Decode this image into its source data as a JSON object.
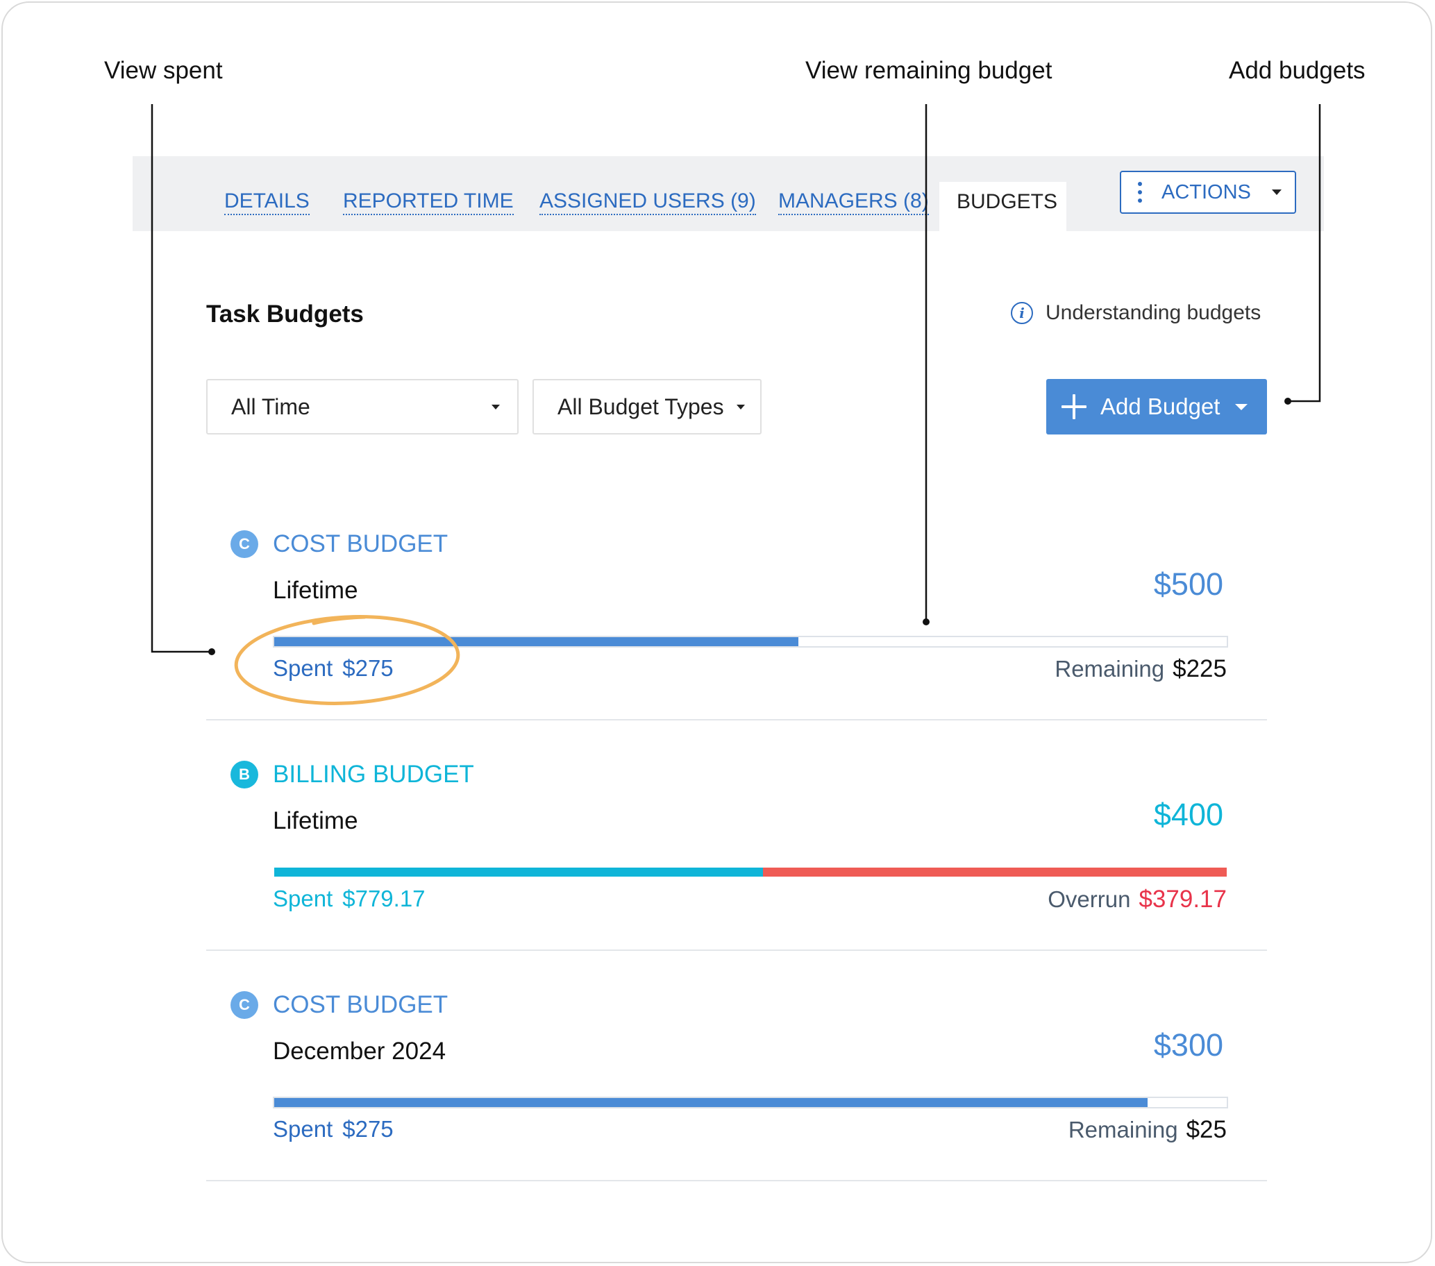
{
  "callouts": {
    "view_spent": "View spent",
    "view_remaining": "View remaining budget",
    "add_budgets": "Add budgets"
  },
  "tabs": [
    {
      "label": "DETAILS",
      "active": false
    },
    {
      "label": "REPORTED TIME",
      "active": false
    },
    {
      "label": "ASSIGNED USERS (9)",
      "active": false
    },
    {
      "label": "MANAGERS (8)",
      "active": false
    },
    {
      "label": "BUDGETS",
      "active": true
    }
  ],
  "actions_label": "ACTIONS",
  "page_title": "Task Budgets",
  "help_link": "Understanding budgets",
  "filters": {
    "time": "All Time",
    "budget_type": "All Budget Types"
  },
  "add_budget_label": "Add Budget",
  "colors": {
    "cost": "#4a8bd6",
    "billing": "#0fb5d8",
    "overrun": "#ef5b55",
    "overrun_text": "#e8334a",
    "link": "#2c6bc0",
    "highlight": "#f2b45a"
  },
  "budgets": [
    {
      "badge": "C",
      "type": "COST BUDGET",
      "period": "Lifetime",
      "amount": "$500",
      "spent_label": "Spent",
      "spent_value": "$275",
      "status_label": "Remaining",
      "status_value": "$225",
      "fill_fraction": 0.55,
      "overrun_fraction": 0
    },
    {
      "badge": "B",
      "type": "BILLING BUDGET",
      "period": "Lifetime",
      "amount": "$400",
      "spent_label": "Spent",
      "spent_value": "$779.17",
      "status_label": "Overrun",
      "status_value": "$379.17",
      "fill_fraction": 0.513,
      "overrun_fraction": 0.487
    },
    {
      "badge": "C",
      "type": "COST BUDGET",
      "period": "December 2024",
      "amount": "$300",
      "spent_label": "Spent",
      "spent_value": "$275",
      "status_label": "Remaining",
      "status_value": "$25",
      "fill_fraction": 0.917,
      "overrun_fraction": 0
    }
  ]
}
